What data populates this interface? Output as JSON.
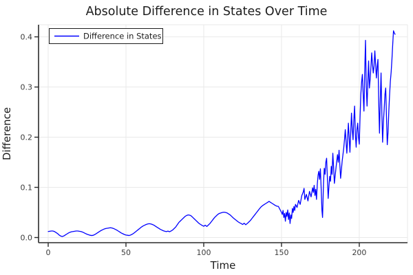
{
  "title": "Absolute Difference in States Over Time",
  "legend": {
    "label": "Difference in States"
  },
  "colors": {
    "series_blue": "#0000ff",
    "grid": "#e9e9e9",
    "spine": "#2a2a2a",
    "title_text": "#1c1c1c",
    "tick_text": "#3a3a3a",
    "legend_border": "#1c1c1c",
    "background": "#ffffff"
  },
  "chart_data": {
    "type": "line",
    "title": "Absolute Difference in States Over Time",
    "xlabel": "Time",
    "ylabel": "Difference",
    "xlim": [
      -6.2,
      231
    ],
    "ylim": [
      -0.0103,
      0.4241
    ],
    "xticks": [
      0,
      50,
      100,
      150,
      200
    ],
    "xtick_labels": [
      "0",
      "50",
      "100",
      "150",
      "200"
    ],
    "yticks": [
      0.0,
      0.1,
      0.2,
      0.3,
      0.4
    ],
    "ytick_labels": [
      "0.0",
      "0.1",
      "0.2",
      "0.3",
      "0.4"
    ],
    "grid": true,
    "legend_position": "top-left",
    "series": [
      {
        "name": "Difference in States",
        "color": "#0000ff",
        "points": [
          [
            0,
            0.012
          ],
          [
            1,
            0.0125
          ],
          [
            2,
            0.013
          ],
          [
            3,
            0.013
          ],
          [
            4,
            0.012
          ],
          [
            5,
            0.01
          ],
          [
            6,
            0.008
          ],
          [
            7,
            0.005
          ],
          [
            8,
            0.003
          ],
          [
            9,
            0.002
          ],
          [
            10,
            0.003
          ],
          [
            11,
            0.005
          ],
          [
            12,
            0.007
          ],
          [
            13,
            0.009
          ],
          [
            14,
            0.0105
          ],
          [
            15,
            0.0115
          ],
          [
            16,
            0.012
          ],
          [
            17,
            0.0125
          ],
          [
            18,
            0.013
          ],
          [
            19,
            0.013
          ],
          [
            20,
            0.0125
          ],
          [
            21,
            0.012
          ],
          [
            22,
            0.011
          ],
          [
            23,
            0.0095
          ],
          [
            24,
            0.008
          ],
          [
            25,
            0.0065
          ],
          [
            26,
            0.0055
          ],
          [
            27,
            0.0045
          ],
          [
            28,
            0.004
          ],
          [
            29,
            0.0045
          ],
          [
            30,
            0.006
          ],
          [
            31,
            0.008
          ],
          [
            32,
            0.01
          ],
          [
            33,
            0.012
          ],
          [
            34,
            0.014
          ],
          [
            35,
            0.0155
          ],
          [
            36,
            0.017
          ],
          [
            37,
            0.018
          ],
          [
            38,
            0.0185
          ],
          [
            39,
            0.019
          ],
          [
            40,
            0.0195
          ],
          [
            41,
            0.019
          ],
          [
            42,
            0.018
          ],
          [
            43,
            0.0165
          ],
          [
            44,
            0.015
          ],
          [
            45,
            0.013
          ],
          [
            46,
            0.011
          ],
          [
            47,
            0.009
          ],
          [
            48,
            0.0075
          ],
          [
            49,
            0.006
          ],
          [
            50,
            0.005
          ],
          [
            51,
            0.0045
          ],
          [
            52,
            0.004
          ],
          [
            53,
            0.005
          ],
          [
            54,
            0.0065
          ],
          [
            55,
            0.0085
          ],
          [
            56,
            0.011
          ],
          [
            57,
            0.0135
          ],
          [
            58,
            0.016
          ],
          [
            59,
            0.0185
          ],
          [
            60,
            0.021
          ],
          [
            61,
            0.023
          ],
          [
            62,
            0.0245
          ],
          [
            63,
            0.026
          ],
          [
            64,
            0.027
          ],
          [
            65,
            0.0275
          ],
          [
            66,
            0.027
          ],
          [
            67,
            0.026
          ],
          [
            68,
            0.0245
          ],
          [
            69,
            0.0225
          ],
          [
            70,
            0.0205
          ],
          [
            71,
            0.0185
          ],
          [
            72,
            0.0165
          ],
          [
            73,
            0.015
          ],
          [
            74,
            0.0135
          ],
          [
            75,
            0.0125
          ],
          [
            76,
            0.0118
          ],
          [
            77,
            0.0128
          ],
          [
            78,
            0.0115
          ],
          [
            79,
            0.013
          ],
          [
            80,
            0.015
          ],
          [
            81,
            0.018
          ],
          [
            82,
            0.021
          ],
          [
            83,
            0.0255
          ],
          [
            84,
            0.03
          ],
          [
            85,
            0.033
          ],
          [
            86,
            0.036
          ],
          [
            87,
            0.039
          ],
          [
            88,
            0.042
          ],
          [
            89,
            0.044
          ],
          [
            90,
            0.045
          ],
          [
            91,
            0.0445
          ],
          [
            92,
            0.043
          ],
          [
            93,
            0.04
          ],
          [
            94,
            0.037
          ],
          [
            95,
            0.034
          ],
          [
            96,
            0.031
          ],
          [
            97,
            0.028
          ],
          [
            98,
            0.026
          ],
          [
            99,
            0.024
          ],
          [
            100,
            0.0225
          ],
          [
            101,
            0.0245
          ],
          [
            102,
            0.022
          ],
          [
            103,
            0.025
          ],
          [
            104,
            0.028
          ],
          [
            105,
            0.032
          ],
          [
            106,
            0.036
          ],
          [
            107,
            0.04
          ],
          [
            108,
            0.043
          ],
          [
            109,
            0.046
          ],
          [
            110,
            0.048
          ],
          [
            111,
            0.049
          ],
          [
            112,
            0.05
          ],
          [
            113,
            0.0505
          ],
          [
            114,
            0.05
          ],
          [
            115,
            0.049
          ],
          [
            116,
            0.047
          ],
          [
            117,
            0.045
          ],
          [
            118,
            0.042
          ],
          [
            119,
            0.039
          ],
          [
            120,
            0.0365
          ],
          [
            121,
            0.034
          ],
          [
            122,
            0.0315
          ],
          [
            123,
            0.0295
          ],
          [
            124,
            0.028
          ],
          [
            125,
            0.026
          ],
          [
            126,
            0.0285
          ],
          [
            127,
            0.0255
          ],
          [
            128,
            0.028
          ],
          [
            129,
            0.031
          ],
          [
            130,
            0.034
          ],
          [
            131,
            0.038
          ],
          [
            132,
            0.042
          ],
          [
            133,
            0.046
          ],
          [
            134,
            0.05
          ],
          [
            135,
            0.054
          ],
          [
            136,
            0.058
          ],
          [
            137,
            0.0615
          ],
          [
            138,
            0.064
          ],
          [
            139,
            0.066
          ],
          [
            140,
            0.068
          ],
          [
            141,
            0.07
          ],
          [
            142,
            0.072
          ],
          [
            143,
            0.07
          ],
          [
            144,
            0.068
          ],
          [
            145,
            0.066
          ],
          [
            146,
            0.064
          ],
          [
            147,
            0.0625
          ],
          [
            148,
            0.062
          ],
          [
            149,
            0.056
          ],
          [
            150,
            0.05
          ],
          [
            150.5,
            0.046
          ],
          [
            151,
            0.054
          ],
          [
            151.5,
            0.04
          ],
          [
            152,
            0.048
          ],
          [
            152.5,
            0.0325
          ],
          [
            153,
            0.05
          ],
          [
            153.5,
            0.042
          ],
          [
            154,
            0.055
          ],
          [
            154.5,
            0.036
          ],
          [
            155,
            0.049
          ],
          [
            155.5,
            0.028
          ],
          [
            156,
            0.045
          ],
          [
            156.5,
            0.038
          ],
          [
            157,
            0.058
          ],
          [
            157.5,
            0.05
          ],
          [
            158,
            0.062
          ],
          [
            158.5,
            0.054
          ],
          [
            159,
            0.066
          ],
          [
            160,
            0.06
          ],
          [
            161,
            0.074
          ],
          [
            162,
            0.066
          ],
          [
            163,
            0.083
          ],
          [
            164,
            0.091
          ],
          [
            164.5,
            0.098
          ],
          [
            165,
            0.076
          ],
          [
            166,
            0.086
          ],
          [
            167,
            0.073
          ],
          [
            168,
            0.092
          ],
          [
            169,
            0.081
          ],
          [
            170,
            0.099
          ],
          [
            170.5,
            0.09
          ],
          [
            171,
            0.104
          ],
          [
            171.5,
            0.084
          ],
          [
            172,
            0.096
          ],
          [
            172.5,
            0.076
          ],
          [
            173,
            0.106
          ],
          [
            173.5,
            0.124
          ],
          [
            174,
            0.132
          ],
          [
            174.5,
            0.116
          ],
          [
            175,
            0.137
          ],
          [
            175.5,
            0.098
          ],
          [
            176,
            0.054
          ],
          [
            176.4,
            0.04
          ],
          [
            177,
            0.108
          ],
          [
            177.5,
            0.138
          ],
          [
            178,
            0.126
          ],
          [
            178.5,
            0.15
          ],
          [
            179,
            0.158
          ],
          [
            179.5,
            0.118
          ],
          [
            180,
            0.078
          ],
          [
            180.5,
            0.102
          ],
          [
            181,
            0.122
          ],
          [
            181.5,
            0.112
          ],
          [
            182,
            0.142
          ],
          [
            182.5,
            0.126
          ],
          [
            183,
            0.168
          ],
          [
            183.5,
            0.14
          ],
          [
            184,
            0.108
          ],
          [
            185,
            0.138
          ],
          [
            186,
            0.165
          ],
          [
            186.5,
            0.15
          ],
          [
            187,
            0.174
          ],
          [
            188,
            0.118
          ],
          [
            189,
            0.152
          ],
          [
            190,
            0.178
          ],
          [
            190.5,
            0.195
          ],
          [
            191,
            0.215
          ],
          [
            192,
            0.168
          ],
          [
            192.5,
            0.195
          ],
          [
            193,
            0.228
          ],
          [
            193.5,
            0.2
          ],
          [
            194,
            0.17
          ],
          [
            194.5,
            0.21
          ],
          [
            195,
            0.248
          ],
          [
            195.5,
            0.215
          ],
          [
            196,
            0.195
          ],
          [
            196.5,
            0.235
          ],
          [
            197,
            0.262
          ],
          [
            197.5,
            0.205
          ],
          [
            198,
            0.18
          ],
          [
            198.5,
            0.215
          ],
          [
            199,
            0.228
          ],
          [
            199.5,
            0.2
          ],
          [
            200,
            0.186
          ],
          [
            200.5,
            0.24
          ],
          [
            201,
            0.285
          ],
          [
            201.5,
            0.31
          ],
          [
            202,
            0.325
          ],
          [
            202.5,
            0.285
          ],
          [
            203,
            0.252
          ],
          [
            203.5,
            0.33
          ],
          [
            204,
            0.393
          ],
          [
            204.5,
            0.3
          ],
          [
            205,
            0.262
          ],
          [
            205.5,
            0.31
          ],
          [
            206,
            0.352
          ],
          [
            206.5,
            0.298
          ],
          [
            207,
            0.315
          ],
          [
            207.5,
            0.34
          ],
          [
            208,
            0.368
          ],
          [
            208.5,
            0.345
          ],
          [
            209,
            0.328
          ],
          [
            209.5,
            0.342
          ],
          [
            210,
            0.372
          ],
          [
            210.5,
            0.345
          ],
          [
            211,
            0.318
          ],
          [
            211.5,
            0.34
          ],
          [
            212,
            0.355
          ],
          [
            212.5,
            0.27
          ],
          [
            213,
            0.208
          ],
          [
            213.5,
            0.275
          ],
          [
            214,
            0.328
          ],
          [
            214.5,
            0.25
          ],
          [
            215,
            0.19
          ],
          [
            215.5,
            0.23
          ],
          [
            216,
            0.255
          ],
          [
            216.5,
            0.285
          ],
          [
            217,
            0.298
          ],
          [
            217.5,
            0.24
          ],
          [
            218,
            0.185
          ],
          [
            218.5,
            0.21
          ],
          [
            219,
            0.252
          ],
          [
            219.5,
            0.285
          ],
          [
            220,
            0.312
          ],
          [
            220.5,
            0.33
          ],
          [
            221,
            0.355
          ],
          [
            221.5,
            0.385
          ],
          [
            222,
            0.412
          ],
          [
            222.5,
            0.408
          ],
          [
            223,
            0.405
          ]
        ]
      }
    ]
  }
}
